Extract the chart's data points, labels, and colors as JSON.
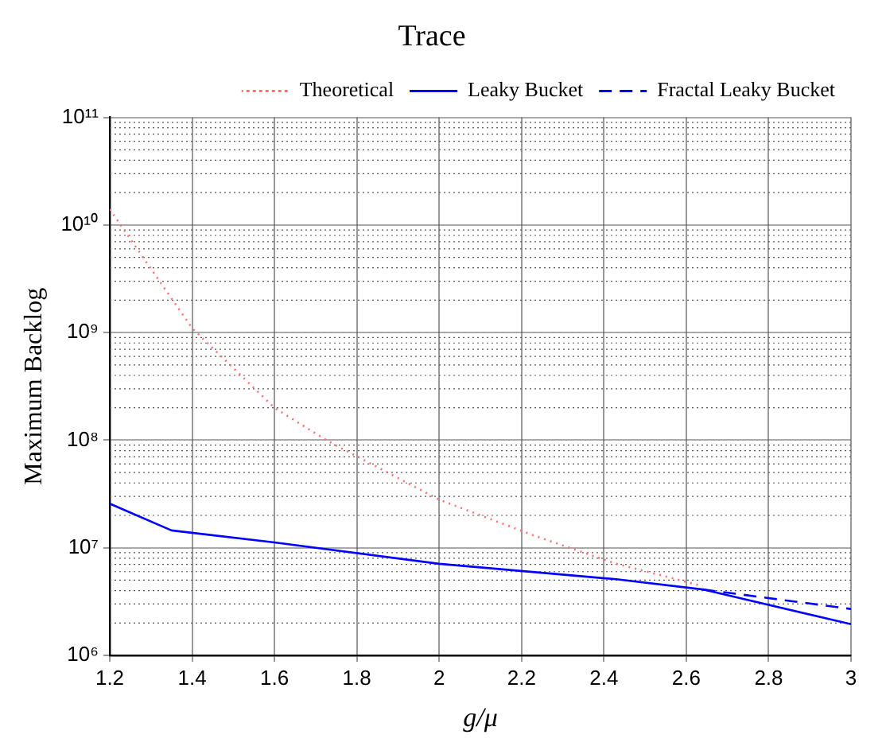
{
  "chart_data": {
    "type": "line",
    "title": "Trace",
    "xlabel": "g/μ",
    "ylabel": "Maximum Backlog",
    "log": "y",
    "grid": true,
    "legend": "top right",
    "marker": "none",
    "xlim": [
      1.2,
      3
    ],
    "xticks": [
      1.2,
      1.4,
      1.6,
      1.8,
      2,
      2.2,
      2.4,
      2.6,
      2.8,
      3
    ],
    "ylim": [
      1000000,
      100000000000
    ],
    "yticks": [
      {
        "value": 1000000,
        "label": "10⁶"
      },
      {
        "value": 10000000,
        "label": "10⁷"
      },
      {
        "value": 100000000,
        "label": "10⁸"
      },
      {
        "value": 1000000000,
        "label": "10⁹"
      },
      {
        "value": 10000000000,
        "label": "10¹⁰"
      },
      {
        "value": 100000000000,
        "label": "10¹¹"
      }
    ],
    "series": [
      {
        "name": "Theoretical",
        "color": "#ff7070",
        "line_style": "dotted",
        "x": [
          1.2,
          1.4,
          1.6,
          1.73,
          2.0,
          2.23,
          2.43,
          2.64
        ],
        "values": [
          14000000000,
          1100000000,
          200000000,
          98000000,
          28000000,
          13000000,
          7100000,
          4400000
        ]
      },
      {
        "name": "Leaky Bucket",
        "color": "#0000ff",
        "line_style": "solid",
        "x": [
          1.2,
          1.35,
          1.6,
          2.0,
          2.43,
          2.64,
          3.0
        ],
        "values": [
          25700000,
          14500000,
          11200000,
          7100000,
          5100000,
          4100000,
          1950000
        ]
      },
      {
        "name": "Fractal Leaky Bucket",
        "color": "#0000ff",
        "line_style": "dashed",
        "x": [
          2.64,
          3.0
        ],
        "values": [
          4100000,
          2700000
        ]
      }
    ]
  }
}
